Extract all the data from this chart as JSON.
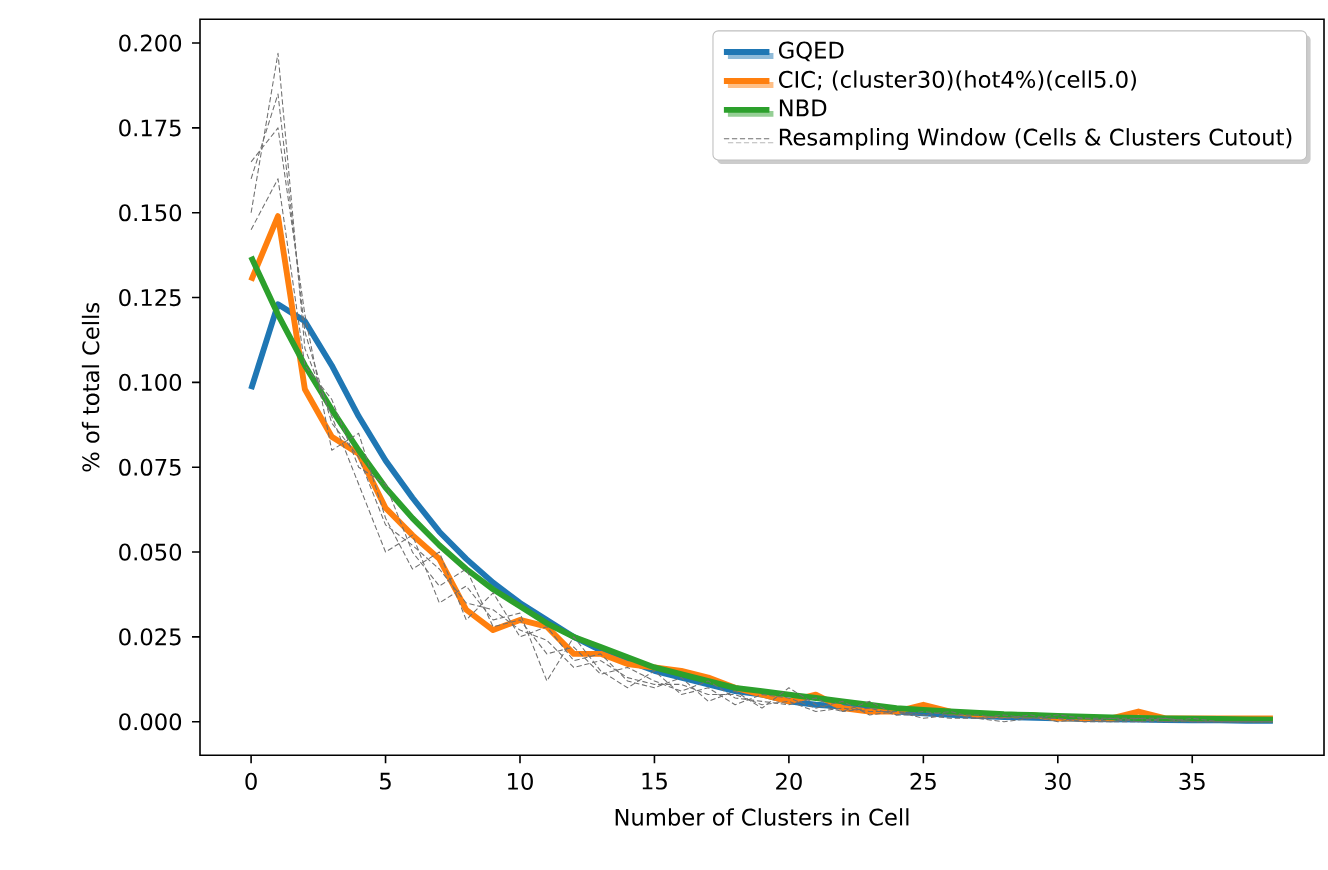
{
  "chart_data": {
    "type": "line",
    "xlabel": "Number of Clusters in Cell",
    "ylabel": "% of total Cells",
    "x": [
      0,
      1,
      2,
      3,
      4,
      5,
      6,
      7,
      8,
      9,
      10,
      11,
      12,
      13,
      14,
      15,
      16,
      17,
      18,
      19,
      20,
      21,
      22,
      23,
      24,
      25,
      26,
      27,
      28,
      29,
      30,
      31,
      32,
      33,
      34,
      35,
      36,
      37,
      38
    ],
    "xlim": [
      -1.9,
      39.9
    ],
    "xticks": [
      0,
      5,
      10,
      15,
      20,
      25,
      30,
      35
    ],
    "ylim": [
      -0.0099,
      0.207
    ],
    "yticks": [
      {
        "value": 0,
        "label": "0.000"
      },
      {
        "value": 0.025,
        "label": "0.025"
      },
      {
        "value": 0.05,
        "label": "0.050"
      },
      {
        "value": 0.075,
        "label": "0.075"
      },
      {
        "value": 0.1,
        "label": "0.100"
      },
      {
        "value": 0.125,
        "label": "0.125"
      },
      {
        "value": 0.15,
        "label": "0.150"
      },
      {
        "value": 0.175,
        "label": "0.175"
      },
      {
        "value": 0.2,
        "label": "0.200"
      }
    ],
    "legend": "top right",
    "grid": false,
    "series": [
      {
        "name": "GQED",
        "color": "#1f77b4",
        "values": [
          0.098,
          0.123,
          0.118,
          0.105,
          0.09,
          0.077,
          0.066,
          0.056,
          0.048,
          0.041,
          0.035,
          0.03,
          0.025,
          0.021,
          0.018,
          0.015,
          0.013,
          0.011,
          0.009,
          0.008,
          0.006,
          0.005,
          0.0045,
          0.004,
          0.003,
          0.0025,
          0.002,
          0.0017,
          0.0014,
          0.0012,
          0.001,
          0.0008,
          0.0007,
          0.0006,
          0.0005,
          0.0004,
          0.0004,
          0.0003,
          0.0003
        ]
      },
      {
        "name": "CIC; (cluster30)(hot4%)(cell5.0)",
        "color": "#ff7f0e",
        "values": [
          0.13,
          0.149,
          0.098,
          0.084,
          0.079,
          0.063,
          0.055,
          0.048,
          0.033,
          0.027,
          0.03,
          0.028,
          0.02,
          0.02,
          0.017,
          0.016,
          0.015,
          0.013,
          0.01,
          0.008,
          0.006,
          0.008,
          0.004,
          0.003,
          0.003,
          0.005,
          0.003,
          0.002,
          0.002,
          0.002,
          0.001,
          0.001,
          0.001,
          0.003,
          0.001,
          0.001,
          0.001,
          0.001,
          0.001
        ]
      },
      {
        "name": "NBD",
        "color": "#2ca02c",
        "values": [
          0.137,
          0.12,
          0.105,
          0.092,
          0.08,
          0.069,
          0.06,
          0.052,
          0.045,
          0.039,
          0.034,
          0.029,
          0.025,
          0.022,
          0.019,
          0.016,
          0.014,
          0.012,
          0.01,
          0.009,
          0.008,
          0.007,
          0.006,
          0.005,
          0.004,
          0.0035,
          0.003,
          0.0026,
          0.0022,
          0.002,
          0.0017,
          0.0015,
          0.0013,
          0.0011,
          0.001,
          0.0009,
          0.0008,
          0.0007,
          0.0006
        ]
      },
      {
        "name": "Resampling Window (Cells & Clusters Cutout)",
        "color": "#707070",
        "line_style": "dashed",
        "values": [
          0.15,
          0.197,
          0.11,
          0.09,
          0.07,
          0.05,
          0.055,
          0.035,
          0.04,
          0.03,
          0.032,
          0.012,
          0.025,
          0.015,
          0.01,
          0.015,
          0.008,
          0.01,
          0.005,
          0.008,
          0.007,
          0.004,
          0.006,
          0.002,
          0.003,
          0.002,
          0.001,
          0.001,
          0.002,
          0.001,
          0.001,
          0.0,
          0.001,
          0.001,
          0.0,
          0.001,
          0.0,
          0.0,
          0.0
        ]
      },
      {
        "color": "#707070",
        "line_style": "dashed",
        "values": [
          0.165,
          0.175,
          0.12,
          0.08,
          0.085,
          0.06,
          0.045,
          0.05,
          0.03,
          0.038,
          0.025,
          0.028,
          0.018,
          0.02,
          0.012,
          0.01,
          0.013,
          0.006,
          0.009,
          0.004,
          0.01,
          0.005,
          0.003,
          0.006,
          0.002,
          0.003,
          0.002,
          0.002,
          0.001,
          0.001,
          0.002,
          0.001,
          0.0,
          0.001,
          0.001,
          0.0,
          0.0,
          0.0,
          0.0
        ]
      },
      {
        "color": "#707070",
        "line_style": "dashed",
        "values": [
          0.145,
          0.16,
          0.105,
          0.095,
          0.075,
          0.07,
          0.05,
          0.04,
          0.045,
          0.028,
          0.03,
          0.02,
          0.022,
          0.014,
          0.016,
          0.012,
          0.009,
          0.012,
          0.007,
          0.006,
          0.005,
          0.007,
          0.003,
          0.004,
          0.002,
          0.002,
          0.003,
          0.001,
          0.001,
          0.002,
          0.0,
          0.001,
          0.001,
          0.0,
          0.0,
          0.0,
          0.0,
          0.0,
          0.0
        ]
      },
      {
        "color": "#707070",
        "line_style": "dashed",
        "values": [
          0.16,
          0.185,
          0.115,
          0.088,
          0.078,
          0.058,
          0.052,
          0.045,
          0.035,
          0.033,
          0.027,
          0.024,
          0.016,
          0.018,
          0.013,
          0.011,
          0.011,
          0.008,
          0.008,
          0.005,
          0.006,
          0.003,
          0.004,
          0.003,
          0.003,
          0.001,
          0.002,
          0.001,
          0.0,
          0.001,
          0.001,
          0.0,
          0.0,
          0.0,
          0.001,
          0.0,
          0.0,
          0.0,
          0.0
        ]
      }
    ]
  }
}
